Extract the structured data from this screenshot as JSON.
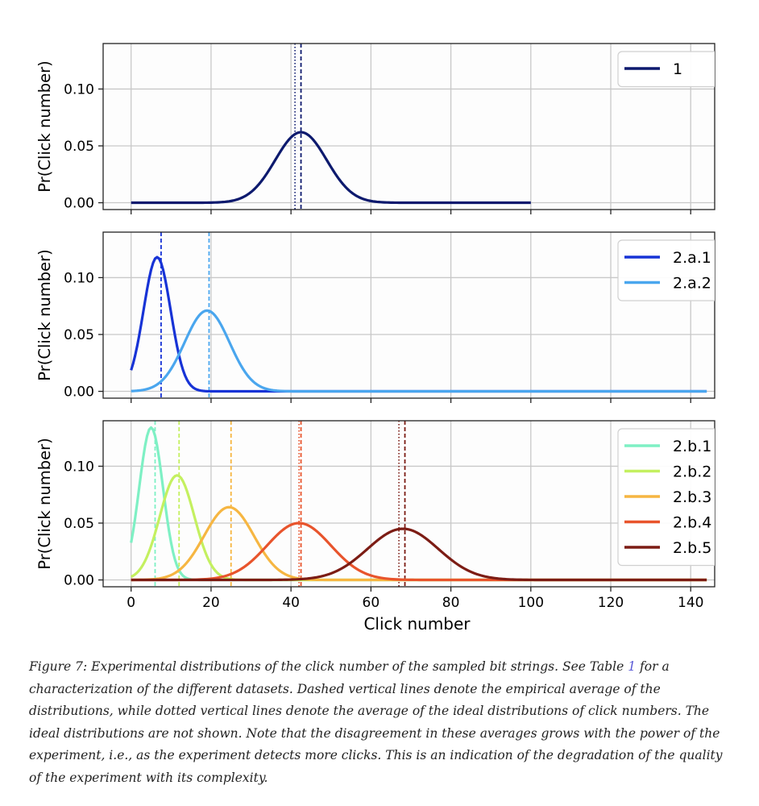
{
  "chart_data": [
    {
      "type": "line",
      "ylabel": "Pr(Click number)",
      "xlabel": "",
      "xlim": [
        -7,
        146
      ],
      "ylim": [
        -0.006,
        0.14
      ],
      "xticks": [
        0,
        20,
        40,
        60,
        80,
        100,
        120,
        140
      ],
      "yticks": [
        0.0,
        0.05,
        0.1
      ],
      "ytick_labels": [
        "0.00",
        "0.05",
        "0.10"
      ],
      "xtick_labels_shown": false,
      "grid": true,
      "legend_position": "top-right",
      "series": [
        {
          "name": "1",
          "color": "#0d1a6e",
          "peak_x": 42.5,
          "peak_y": 0.062,
          "x_range": [
            0,
            100
          ],
          "empirical_mean": 42.5,
          "ideal_mean": 41.0
        }
      ]
    },
    {
      "type": "line",
      "ylabel": "Pr(Click number)",
      "xlabel": "",
      "xlim": [
        -7,
        146
      ],
      "ylim": [
        -0.006,
        0.14
      ],
      "xticks": [
        0,
        20,
        40,
        60,
        80,
        100,
        120,
        140
      ],
      "yticks": [
        0.0,
        0.05,
        0.1
      ],
      "ytick_labels": [
        "0.00",
        "0.05",
        "0.10"
      ],
      "xtick_labels_shown": false,
      "grid": true,
      "legend_position": "top-right",
      "series": [
        {
          "name": "2.a.1",
          "color": "#1733d6",
          "peak_x": 6.5,
          "peak_y": 0.118,
          "x_range": [
            0,
            144
          ],
          "empirical_mean": 7.5,
          "ideal_mean": null
        },
        {
          "name": "2.a.2",
          "color": "#4aa6ee",
          "peak_x": 19.0,
          "peak_y": 0.071,
          "x_range": [
            0,
            144
          ],
          "empirical_mean": 19.5,
          "ideal_mean": null
        }
      ]
    },
    {
      "type": "line",
      "ylabel": "Pr(Click number)",
      "xlabel": "Click number",
      "xlim": [
        -7,
        146
      ],
      "ylim": [
        -0.006,
        0.14
      ],
      "xticks": [
        0,
        20,
        40,
        60,
        80,
        100,
        120,
        140
      ],
      "xtick_labels": [
        "0",
        "20",
        "40",
        "60",
        "80",
        "100",
        "120",
        "140"
      ],
      "yticks": [
        0.0,
        0.05,
        0.1
      ],
      "ytick_labels": [
        "0.00",
        "0.05",
        "0.10"
      ],
      "xtick_labels_shown": true,
      "grid": true,
      "legend_position": "top-right",
      "series": [
        {
          "name": "2.b.1",
          "color": "#7ef0c4",
          "peak_x": 5.0,
          "peak_y": 0.134,
          "x_range": [
            0,
            144
          ],
          "empirical_mean": 6.0,
          "ideal_mean": null
        },
        {
          "name": "2.b.2",
          "color": "#c4f060",
          "peak_x": 11.5,
          "peak_y": 0.092,
          "x_range": [
            0,
            144
          ],
          "empirical_mean": 12.0,
          "ideal_mean": null
        },
        {
          "name": "2.b.3",
          "color": "#f6b642",
          "peak_x": 24.5,
          "peak_y": 0.064,
          "x_range": [
            0,
            144
          ],
          "empirical_mean": 25.0,
          "ideal_mean": null
        },
        {
          "name": "2.b.4",
          "color": "#e8542c",
          "peak_x": 42.0,
          "peak_y": 0.05,
          "x_range": [
            0,
            144
          ],
          "empirical_mean": 42.5,
          "ideal_mean": 42.0
        },
        {
          "name": "2.b.5",
          "color": "#7c1c14",
          "peak_x": 68.0,
          "peak_y": 0.045,
          "x_range": [
            0,
            144
          ],
          "empirical_mean": 68.5,
          "ideal_mean": 67.0
        }
      ]
    }
  ],
  "caption": {
    "before_ref": "Figure 7: Experimental distributions of the click number of the sampled bit strings. See Table ",
    "ref": "1",
    "after_ref": " for a characterization of the different datasets. Dashed vertical lines denote the empirical average of the distributions, while dotted vertical lines denote the average of the ideal distributions of click numbers. The ideal distributions are not shown. Note that the disagreement in these averages grows with the power of the experiment, i.e., as the experiment detects more clicks. This is an indication of the degradation of the quality of the experiment with its complexity."
  }
}
